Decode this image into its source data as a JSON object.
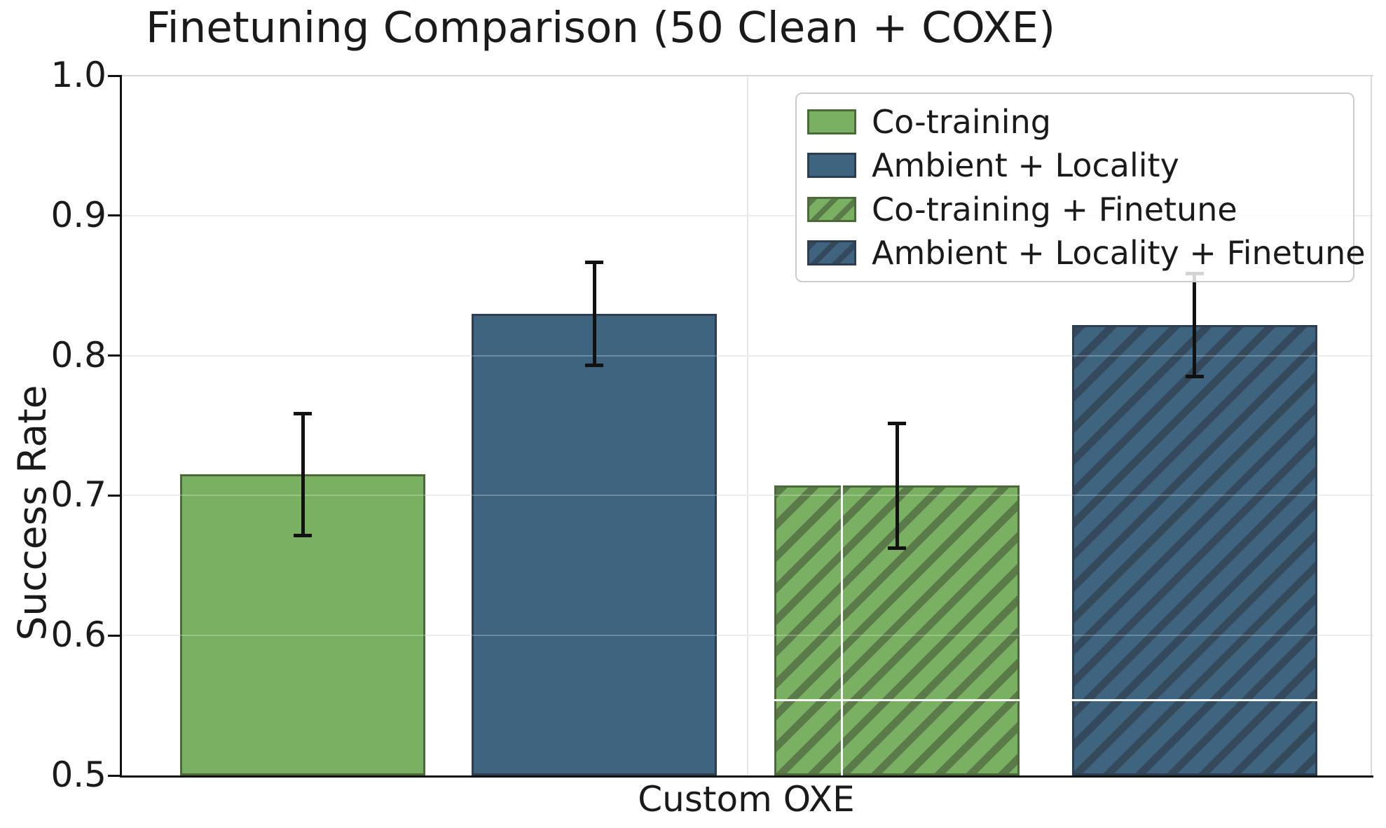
{
  "chart_data": {
    "type": "bar",
    "title": "Finetuning Comparison (50 Clean + COXE)",
    "ylabel": "Success Rate",
    "categories": [
      "Custom OXE"
    ],
    "ylim": [
      0.5,
      1.0
    ],
    "yticks": [
      0.5,
      0.6,
      0.7,
      0.8,
      0.9,
      1.0
    ],
    "ytick_labels": [
      "0.5",
      "0.6",
      "0.7",
      "0.8",
      "0.9",
      "1.0"
    ],
    "grid": true,
    "legend_position": "upper right",
    "series": [
      {
        "name": "Co-training",
        "value": 0.715,
        "error": 0.045,
        "fill": "#7ab061",
        "edge": "#4a6a38",
        "hatch": false
      },
      {
        "name": "Ambient + Locality",
        "value": 0.83,
        "error": 0.038,
        "fill": "#3e6480",
        "edge": "#2c3e4f",
        "hatch": false
      },
      {
        "name": "Co-training + Finetune",
        "value": 0.707,
        "error": 0.046,
        "fill": "#7ab061",
        "edge": "#4a6a38",
        "hatch": true,
        "hatch_color": "#5a7a4a"
      },
      {
        "name": "Ambient + Locality + Finetune",
        "value": 0.822,
        "error": 0.038,
        "fill": "#3e6480",
        "edge": "#2c3e4f",
        "hatch": true,
        "hatch_color": "#35495c"
      }
    ],
    "artifacts": {
      "white_hline_value": 0.5545,
      "white_hline_bar_indexes": [
        2,
        3
      ],
      "white_vline_bar_index": 2,
      "white_vline_fraction": 0.27
    }
  },
  "colors": {
    "background": "#ffffff",
    "text": "#1a1a1a",
    "gridline": "#e7e7e7",
    "spine_dark": "#111111",
    "spine_light": "#d8d8d8",
    "legend_border": "#cccccc",
    "error_bar": "#111111",
    "artifact_line": "#ffffff"
  }
}
